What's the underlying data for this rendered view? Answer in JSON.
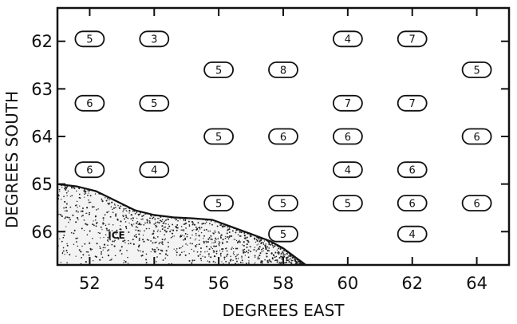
{
  "map": {
    "xlabel": "DEGREES EAST",
    "ylabel": "DEGREES SOUTH",
    "ice_label": "ICE",
    "x_ticks": [
      "52",
      "54",
      "56",
      "58",
      "60",
      "62",
      "64"
    ],
    "y_ticks": [
      "62",
      "63",
      "64",
      "65",
      "66"
    ],
    "xlim": [
      51,
      65
    ],
    "ylim": [
      61.3,
      66.7
    ]
  },
  "chart_data": {
    "type": "scatter",
    "xlabel": "DEGREES EAST",
    "ylabel": "DEGREES SOUTH",
    "x_ticks": [
      52,
      54,
      56,
      58,
      60,
      62,
      64
    ],
    "y_ticks": [
      62,
      63,
      64,
      65,
      66
    ],
    "stations": [
      {
        "lon": 52,
        "lat": 61.95,
        "value": "5"
      },
      {
        "lon": 54,
        "lat": 61.95,
        "value": "3"
      },
      {
        "lon": 60,
        "lat": 61.95,
        "value": "4"
      },
      {
        "lon": 62,
        "lat": 61.95,
        "value": "7"
      },
      {
        "lon": 56,
        "lat": 62.6,
        "value": "5"
      },
      {
        "lon": 58,
        "lat": 62.6,
        "value": "8"
      },
      {
        "lon": 64,
        "lat": 62.6,
        "value": "5"
      },
      {
        "lon": 52,
        "lat": 63.3,
        "value": "6"
      },
      {
        "lon": 54,
        "lat": 63.3,
        "value": "5"
      },
      {
        "lon": 60,
        "lat": 63.3,
        "value": "7"
      },
      {
        "lon": 62,
        "lat": 63.3,
        "value": "7"
      },
      {
        "lon": 56,
        "lat": 64.0,
        "value": "5"
      },
      {
        "lon": 58,
        "lat": 64.0,
        "value": "6"
      },
      {
        "lon": 60,
        "lat": 64.0,
        "value": "6"
      },
      {
        "lon": 64,
        "lat": 64.0,
        "value": "6"
      },
      {
        "lon": 52,
        "lat": 64.7,
        "value": "6"
      },
      {
        "lon": 54,
        "lat": 64.7,
        "value": "4"
      },
      {
        "lon": 60,
        "lat": 64.7,
        "value": "4"
      },
      {
        "lon": 62,
        "lat": 64.7,
        "value": "6"
      },
      {
        "lon": 56,
        "lat": 65.4,
        "value": "5"
      },
      {
        "lon": 58,
        "lat": 65.4,
        "value": "5"
      },
      {
        "lon": 60,
        "lat": 65.4,
        "value": "5"
      },
      {
        "lon": 62,
        "lat": 65.4,
        "value": "6"
      },
      {
        "lon": 64,
        "lat": 65.4,
        "value": "6"
      },
      {
        "lon": 58,
        "lat": 66.05,
        "value": "5"
      },
      {
        "lon": 62,
        "lat": 66.05,
        "value": "4"
      }
    ],
    "ice_edge": [
      [
        51.0,
        65.0
      ],
      [
        51.6,
        65.05
      ],
      [
        52.2,
        65.15
      ],
      [
        52.8,
        65.35
      ],
      [
        53.4,
        65.55
      ],
      [
        54.0,
        65.65
      ],
      [
        54.6,
        65.7
      ],
      [
        55.2,
        65.72
      ],
      [
        55.8,
        65.75
      ],
      [
        56.4,
        65.9
      ],
      [
        57.0,
        66.05
      ],
      [
        57.6,
        66.2
      ],
      [
        58.0,
        66.35
      ],
      [
        58.4,
        66.55
      ],
      [
        58.7,
        66.7
      ]
    ]
  }
}
